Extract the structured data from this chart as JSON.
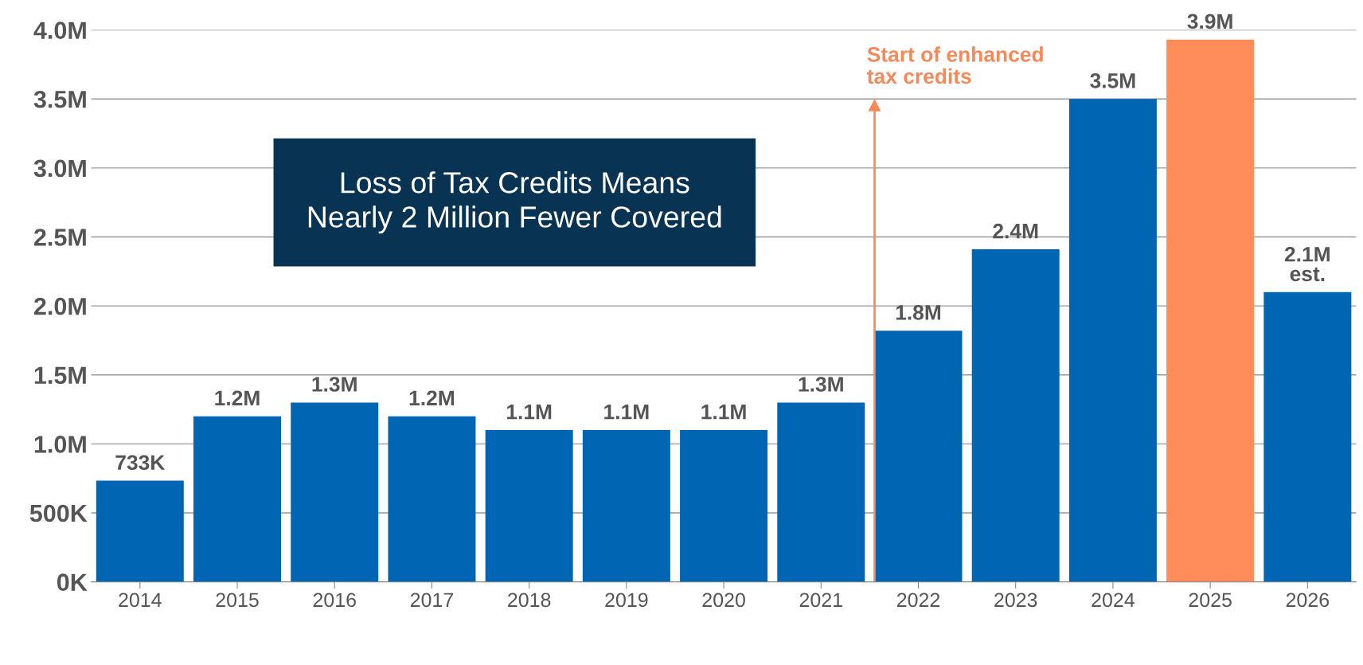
{
  "chart_data": {
    "type": "bar",
    "title": "Loss of Tax Credits Means\nNearly 2 Million Fewer Covered",
    "categories": [
      "2014",
      "2015",
      "2016",
      "2017",
      "2018",
      "2019",
      "2020",
      "2021",
      "2022",
      "2023",
      "2024",
      "2025",
      "2026"
    ],
    "values": [
      733000,
      1200000,
      1300000,
      1200000,
      1100000,
      1100000,
      1100000,
      1300000,
      1820000,
      2410000,
      3500000,
      3930000,
      2100000
    ],
    "colors": [
      "#0066b3",
      "#0066b3",
      "#0066b3",
      "#0066b3",
      "#0066b3",
      "#0066b3",
      "#0066b3",
      "#0066b3",
      "#0066b3",
      "#0066b3",
      "#0066b3",
      "#ff8c5a",
      "#0066b3"
    ],
    "value_labels": [
      "733K",
      "1.2M",
      "1.3M",
      "1.2M",
      "1.1M",
      "1.1M",
      "1.1M",
      "1.3M",
      "1.8M",
      "2.4M",
      "3.5M",
      "3.9M",
      "2.1M\nest."
    ],
    "ylim": [
      0,
      4000000
    ],
    "yticks": [
      {
        "value": 0,
        "label": "0K"
      },
      {
        "value": 500000,
        "label": "500K"
      },
      {
        "value": 1000000,
        "label": "1.0M"
      },
      {
        "value": 1500000,
        "label": "1.5M"
      },
      {
        "value": 2000000,
        "label": "2.0M"
      },
      {
        "value": 2500000,
        "label": "2.5M"
      },
      {
        "value": 3000000,
        "label": "3.0M"
      },
      {
        "value": 3500000,
        "label": "3.5M"
      },
      {
        "value": 4000000,
        "label": "4.0M"
      }
    ],
    "grid": "y",
    "annotations": [
      "Start of enhanced\ntax credits"
    ]
  }
}
